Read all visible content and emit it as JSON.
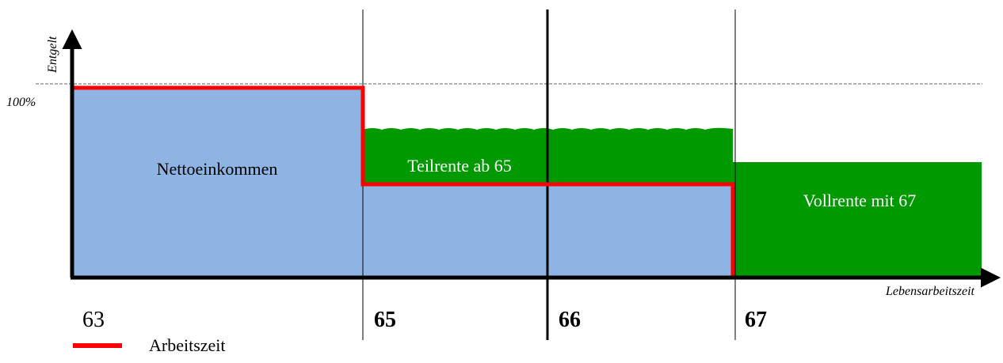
{
  "diagram": {
    "y_axis_label": "Entgelt",
    "x_axis_label": "Lebensarbeitszeit",
    "level_label": "100%",
    "ticks": [
      {
        "label": "63",
        "bold": false
      },
      {
        "label": "65",
        "bold": true
      },
      {
        "label": "66",
        "bold": true
      },
      {
        "label": "67",
        "bold": true
      }
    ],
    "regions": {
      "net_income": "Nettoeinkommen",
      "partial_pension": "Teilrente ab 65",
      "full_pension": "Vollrente mit 67"
    },
    "legend": {
      "label": "Arbeitszeit",
      "color": "#ff0000"
    },
    "colors": {
      "net_income": "#8eb4e3",
      "pension": "#009900",
      "working_time": "#ff0000",
      "axis": "#000000"
    }
  }
}
